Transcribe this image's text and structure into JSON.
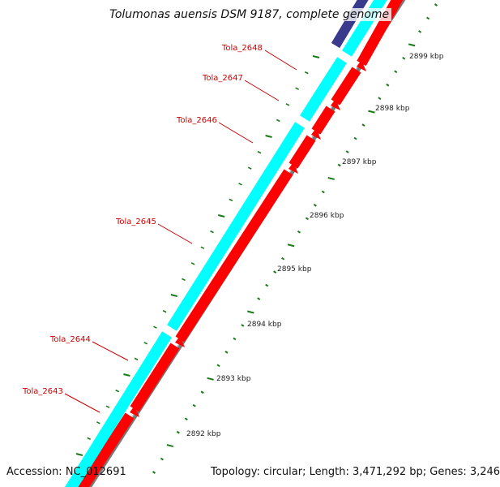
{
  "title": "Tolumonas auensis DSM 9187, complete genome",
  "footer": {
    "accession": "Accession: NC_012691",
    "summary": "Topology: circular; Length: 3,471,292 bp; Genes: 3,246"
  },
  "colors": {
    "forward_cds": "#00ffff",
    "reverse_cds": "#ff0000",
    "other_feature": "#3a3a8c",
    "backbone": "#888888",
    "ticks": "#1a7a1a",
    "gene_label": "#cc0000"
  },
  "genes": [
    {
      "name": "Tola_2648"
    },
    {
      "name": "Tola_2647"
    },
    {
      "name": "Tola_2646"
    },
    {
      "name": "Tola_2645"
    },
    {
      "name": "Tola_2644"
    },
    {
      "name": "Tola_2643"
    }
  ],
  "kbp_ticks": [
    {
      "label": "2899 kbp"
    },
    {
      "label": "2898 kbp"
    },
    {
      "label": "2897 kbp"
    },
    {
      "label": "2896 kbp"
    },
    {
      "label": "2895 kbp"
    },
    {
      "label": "2894 kbp"
    },
    {
      "label": "2893 kbp"
    },
    {
      "label": "2892 kbp"
    }
  ]
}
